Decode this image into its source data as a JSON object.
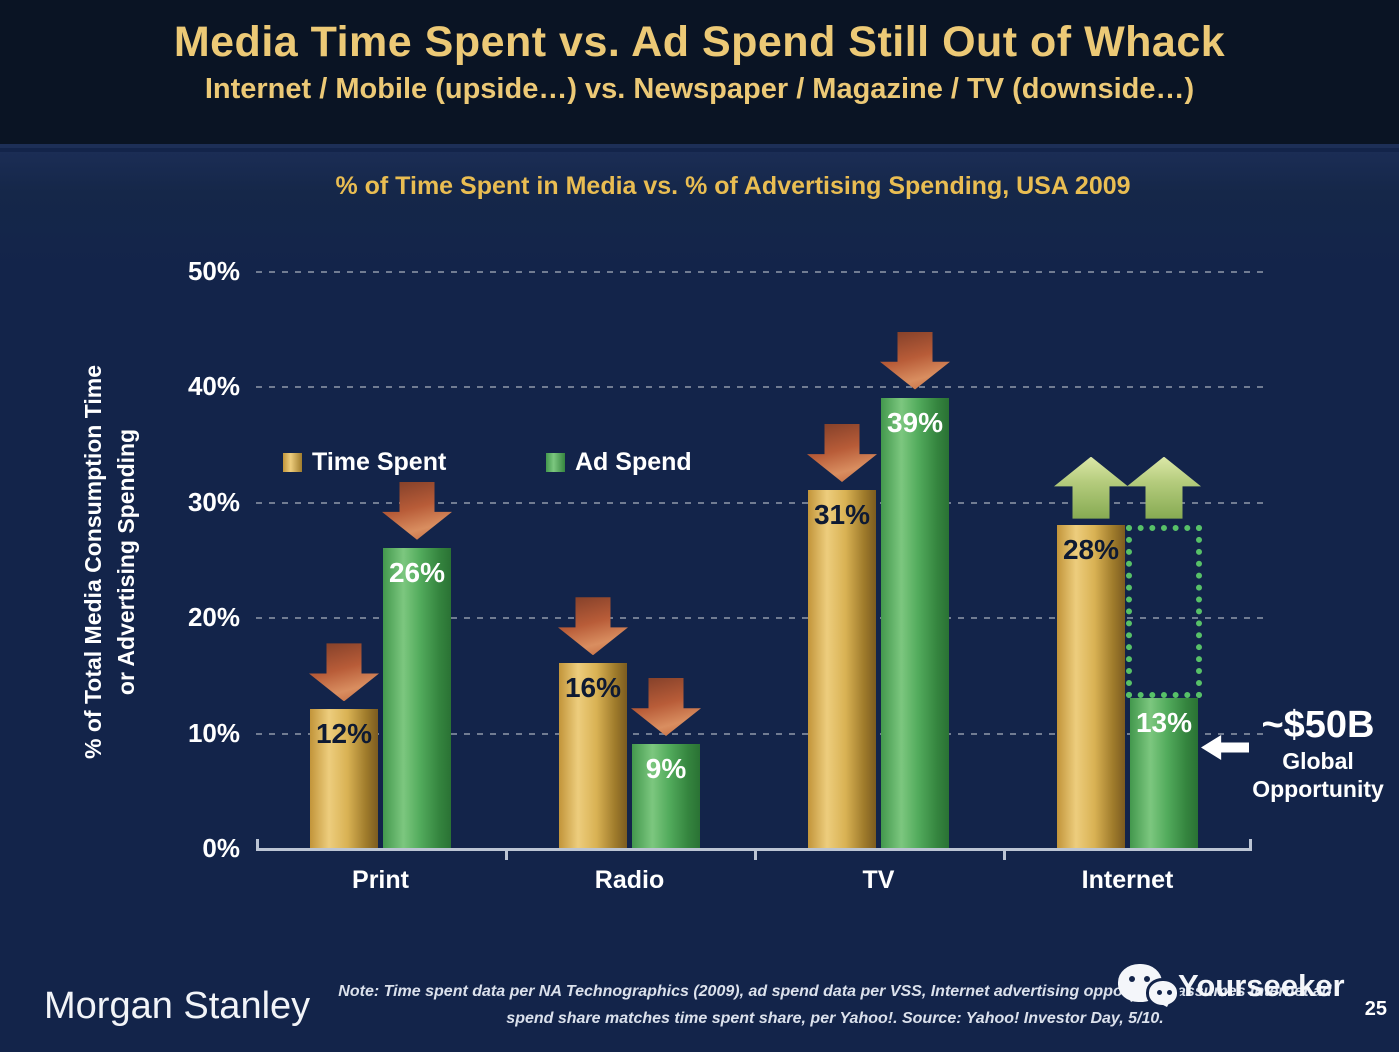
{
  "slide": {
    "title": "Media Time Spent vs. Ad Spend Still Out of Whack",
    "subtitle": "Internet / Mobile (upside…) vs. Newspaper / Magazine / TV (downside…)",
    "page_number": "25"
  },
  "colors": {
    "title_gold": "#ecc976",
    "chart_title_gold": "#e9bd52",
    "background_header": "#0a1424",
    "background_main": "#13244a",
    "bar_gold": "#d9b254",
    "bar_green": "#52ab5c",
    "trend_down_arrow": "#c2663c",
    "trend_up_arrow": "#b5cc7d",
    "opportunity_dotted_green": "#57c168"
  },
  "chart_data": {
    "type": "bar",
    "title": "% of Time Spent in Media vs. % of Advertising Spending, USA 2009",
    "ylabel": "% of Total Media Consumption Time or Advertising Spending",
    "ylabel_lines": [
      "% of Total Media Consumption Time",
      "or Advertising Spending"
    ],
    "xlabel": "",
    "ylim": [
      0,
      50
    ],
    "ytick_values": [
      0,
      10,
      20,
      30,
      40,
      50
    ],
    "ytick_labels": [
      "0%",
      "10%",
      "20%",
      "30%",
      "40%",
      "50%"
    ],
    "grid": "horizontal-dotted",
    "legend_position": "top-left-inside",
    "categories": [
      "Print",
      "Radio",
      "TV",
      "Internet"
    ],
    "series": [
      {
        "name": "Time Spent",
        "color": "gold",
        "values": [
          12,
          16,
          31,
          28
        ],
        "value_labels": [
          "12%",
          "16%",
          "31%",
          "28%"
        ]
      },
      {
        "name": "Ad Spend",
        "color": "green",
        "values": [
          26,
          9,
          39,
          13
        ],
        "value_labels": [
          "26%",
          "9%",
          "39%",
          "13%"
        ]
      }
    ],
    "trend_arrows": [
      "down",
      "down",
      "down",
      "up"
    ],
    "annotation": {
      "headline": "~$50B",
      "line1": "Global",
      "line2": "Opportunity",
      "pointer": "left-arrow",
      "box_category": "Internet",
      "box_from": 13,
      "box_to": 28
    }
  },
  "footer": {
    "logo": "Morgan Stanley",
    "note_line1": "Note: Time spent data per NA Technographics (2009), ad spend data per VSS, Internet advertising opportunity assumes Internet ad",
    "note_line2": "spend share matches time spent share, per Yahoo!. Source: Yahoo! Investor Day, 5/10.",
    "watermark": "Yourseeker"
  }
}
